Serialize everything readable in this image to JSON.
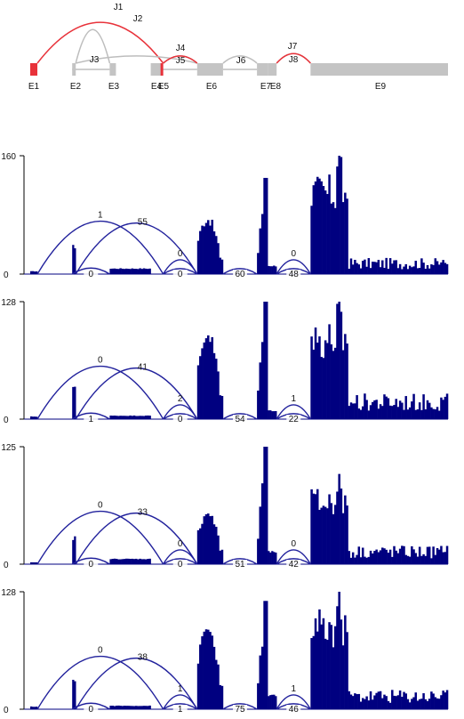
{
  "chart_data": {
    "type": "sashimi",
    "colors": {
      "exon": "#c4c4c4",
      "highlight": "#e8323a",
      "intron_line": "#bdbdbd",
      "coverage": "#000080",
      "arc": "#21219c",
      "axis": "#000000"
    },
    "gene_model": {
      "exons": [
        {
          "name": "E1",
          "start": 0,
          "end": 8,
          "highlight": true
        },
        {
          "name": "E2",
          "start": 47,
          "end": 51,
          "highlight": false
        },
        {
          "name": "E3",
          "start": 89,
          "end": 96,
          "highlight": false
        },
        {
          "name": "E4",
          "start": 135,
          "end": 147,
          "highlight": false
        },
        {
          "name": "E5",
          "start": 147,
          "end": 149,
          "highlight": true
        },
        {
          "name": "E6",
          "start": 187,
          "end": 216,
          "highlight": false
        },
        {
          "name": "E7",
          "start": 254,
          "end": 266,
          "highlight": false
        },
        {
          "name": "E8",
          "start": 266,
          "end": 276,
          "highlight": false
        },
        {
          "name": "E9",
          "start": 314,
          "end": 468,
          "highlight": false
        }
      ],
      "introns": [
        {
          "start": 47,
          "end": 89
        },
        {
          "start": 149,
          "end": 187
        },
        {
          "start": 216,
          "end": 254
        }
      ],
      "junctions": [
        {
          "name": "J1",
          "start": 8,
          "end": 149,
          "highlight": true,
          "label_pos": 0.42
        },
        {
          "name": "J2",
          "start": 51,
          "end": 89,
          "highlight": false,
          "label_pos": 0.5
        },
        {
          "name": "J3",
          "start": 51,
          "end": 187,
          "highlight": false,
          "label_pos": 0.5
        },
        {
          "name": "J4",
          "start": 149,
          "end": 187,
          "highlight": false,
          "label_pos": 0.5
        },
        {
          "name": "J5",
          "start": 149,
          "end": 187,
          "highlight": true,
          "label_pos": 0.5
        },
        {
          "name": "J6",
          "start": 216,
          "end": 254,
          "highlight": false,
          "label_pos": 0.5
        },
        {
          "name": "J7",
          "start": 276,
          "end": 314,
          "highlight": false,
          "label_pos": 0.5
        },
        {
          "name": "J8",
          "start": 276,
          "end": 314,
          "highlight": true,
          "label_pos": 0.5
        }
      ]
    },
    "panels": [
      {
        "y_ticks": [
          "0",
          "160"
        ],
        "ylim": [
          0,
          160
        ],
        "junctions": [
          {
            "start": 8,
            "end": 149,
            "count": "1",
            "above": true
          },
          {
            "start": 51,
            "end": 187,
            "count": "55",
            "above": true
          },
          {
            "start": 47,
            "end": 89,
            "count": "0",
            "above": false
          },
          {
            "start": 149,
            "end": 187,
            "count": "0",
            "above": false
          },
          {
            "start": 149,
            "end": 187,
            "count": "0",
            "above": true
          },
          {
            "start": 216,
            "end": 254,
            "count": "60",
            "above": false
          },
          {
            "start": 276,
            "end": 314,
            "count": "0",
            "above": true
          },
          {
            "start": 276,
            "end": 314,
            "count": "48",
            "above": false
          }
        ],
        "coverage": [
          {
            "start": 0,
            "end": 8,
            "value": 4
          },
          {
            "start": 47,
            "end": 51,
            "value": 40
          },
          {
            "start": 89,
            "end": 135,
            "value": 8
          },
          {
            "start": 187,
            "end": 216,
            "value": 82,
            "shape": "bump"
          },
          {
            "start": 254,
            "end": 266,
            "value": 130,
            "shape": "rise"
          },
          {
            "start": 266,
            "end": 276,
            "value": 12
          },
          {
            "start": 314,
            "end": 356,
            "value": 160,
            "shape": "jagged"
          },
          {
            "start": 356,
            "end": 468,
            "value": 22,
            "shape": "noisy"
          }
        ]
      },
      {
        "y_ticks": [
          "0",
          "128"
        ],
        "ylim": [
          0,
          128
        ],
        "junctions": [
          {
            "start": 8,
            "end": 149,
            "count": "0",
            "above": true
          },
          {
            "start": 51,
            "end": 187,
            "count": "41",
            "above": true
          },
          {
            "start": 47,
            "end": 89,
            "count": "1",
            "above": false
          },
          {
            "start": 149,
            "end": 187,
            "count": "2",
            "above": true
          },
          {
            "start": 149,
            "end": 187,
            "count": "0",
            "above": false
          },
          {
            "start": 216,
            "end": 254,
            "count": "54",
            "above": false
          },
          {
            "start": 276,
            "end": 314,
            "count": "1",
            "above": true
          },
          {
            "start": 276,
            "end": 314,
            "count": "22",
            "above": false
          }
        ],
        "coverage": [
          {
            "start": 0,
            "end": 8,
            "value": 3
          },
          {
            "start": 47,
            "end": 51,
            "value": 38
          },
          {
            "start": 89,
            "end": 135,
            "value": 4
          },
          {
            "start": 187,
            "end": 216,
            "value": 102,
            "shape": "bump"
          },
          {
            "start": 254,
            "end": 266,
            "value": 128,
            "shape": "rise"
          },
          {
            "start": 266,
            "end": 276,
            "value": 10
          },
          {
            "start": 314,
            "end": 356,
            "value": 128,
            "shape": "jagged"
          },
          {
            "start": 356,
            "end": 468,
            "value": 28,
            "shape": "noisy"
          }
        ]
      },
      {
        "y_ticks": [
          "0",
          "125"
        ],
        "ylim": [
          0,
          125
        ],
        "junctions": [
          {
            "start": 8,
            "end": 149,
            "count": "0",
            "above": true
          },
          {
            "start": 51,
            "end": 187,
            "count": "33",
            "above": true
          },
          {
            "start": 47,
            "end": 89,
            "count": "0",
            "above": false
          },
          {
            "start": 149,
            "end": 187,
            "count": "0",
            "above": true
          },
          {
            "start": 149,
            "end": 187,
            "count": "0",
            "above": false
          },
          {
            "start": 216,
            "end": 254,
            "count": "51",
            "above": false
          },
          {
            "start": 276,
            "end": 314,
            "count": "0",
            "above": true
          },
          {
            "start": 276,
            "end": 314,
            "count": "42",
            "above": false
          }
        ],
        "coverage": [
          {
            "start": 0,
            "end": 8,
            "value": 2
          },
          {
            "start": 47,
            "end": 51,
            "value": 30
          },
          {
            "start": 89,
            "end": 135,
            "value": 6
          },
          {
            "start": 187,
            "end": 216,
            "value": 60,
            "shape": "bump"
          },
          {
            "start": 254,
            "end": 266,
            "value": 125,
            "shape": "rise"
          },
          {
            "start": 266,
            "end": 276,
            "value": 14
          },
          {
            "start": 314,
            "end": 356,
            "value": 96,
            "shape": "jagged"
          },
          {
            "start": 356,
            "end": 468,
            "value": 20,
            "shape": "noisy"
          }
        ]
      },
      {
        "y_ticks": [
          "0",
          "128"
        ],
        "ylim": [
          0,
          128
        ],
        "junctions": [
          {
            "start": 8,
            "end": 149,
            "count": "0",
            "above": true
          },
          {
            "start": 51,
            "end": 187,
            "count": "38",
            "above": true
          },
          {
            "start": 47,
            "end": 89,
            "count": "0",
            "above": false
          },
          {
            "start": 149,
            "end": 187,
            "count": "1",
            "above": true
          },
          {
            "start": 149,
            "end": 187,
            "count": "1",
            "above": false
          },
          {
            "start": 216,
            "end": 254,
            "count": "75",
            "above": false
          },
          {
            "start": 276,
            "end": 314,
            "count": "1",
            "above": true
          },
          {
            "start": 276,
            "end": 314,
            "count": "46",
            "above": false
          }
        ],
        "coverage": [
          {
            "start": 0,
            "end": 8,
            "value": 3
          },
          {
            "start": 47,
            "end": 51,
            "value": 34
          },
          {
            "start": 89,
            "end": 135,
            "value": 4
          },
          {
            "start": 187,
            "end": 216,
            "value": 96,
            "shape": "bump"
          },
          {
            "start": 254,
            "end": 266,
            "value": 118,
            "shape": "rise"
          },
          {
            "start": 266,
            "end": 276,
            "value": 16
          },
          {
            "start": 314,
            "end": 356,
            "value": 128,
            "shape": "jagged"
          },
          {
            "start": 356,
            "end": 468,
            "value": 22,
            "shape": "noisy"
          }
        ]
      }
    ]
  }
}
